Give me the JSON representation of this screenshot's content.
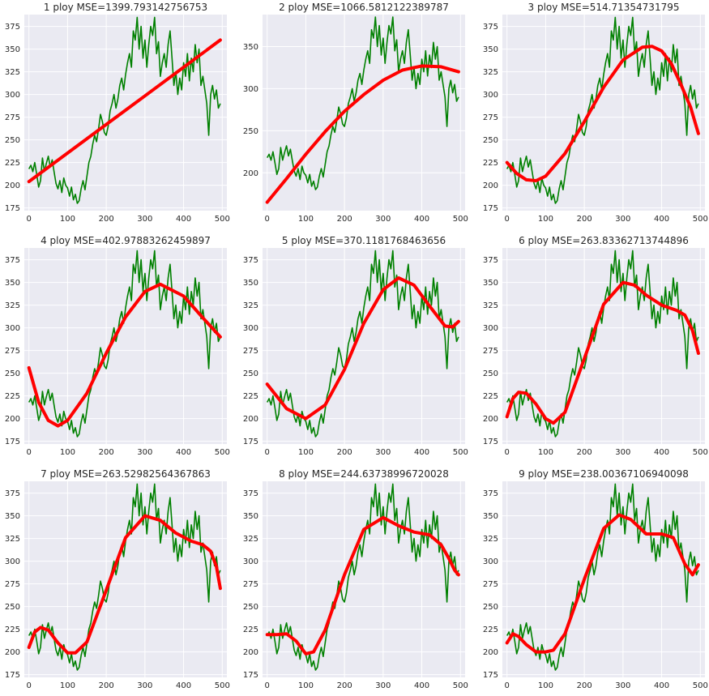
{
  "colors": {
    "background": "#eaeaf2",
    "grid": "#ffffff",
    "data_line": "#008000",
    "fit_line": "#ff0000"
  },
  "chart_data": [
    {
      "type": "line",
      "title": "1 ploy MSE=1399.793142756753",
      "xlim": [
        -12,
        512
      ],
      "ylim": [
        172,
        388
      ],
      "xticks": [
        0,
        100,
        200,
        300,
        400,
        500
      ],
      "xtick_labels": [
        "0",
        "100",
        "200",
        "300",
        "400",
        "500"
      ],
      "yticks": [
        175,
        200,
        225,
        250,
        275,
        300,
        325,
        350,
        375
      ],
      "ytick_labels": [
        "175",
        "200",
        "225",
        "250",
        "275",
        "300",
        "325",
        "350",
        "375"
      ],
      "grid": true,
      "fit": {
        "x": [
          0,
          100,
          200,
          300,
          400,
          495
        ],
        "y": [
          204,
          235.5,
          267,
          298.5,
          330,
          360
        ]
      }
    },
    {
      "type": "line",
      "title": "2 ploy MSE=1066.5812122389787",
      "xlim": [
        -12,
        512
      ],
      "ylim": [
        155,
        388
      ],
      "xticks": [
        0,
        100,
        200,
        300,
        400,
        500
      ],
      "xtick_labels": [
        "0",
        "100",
        "200",
        "300",
        "400",
        "500"
      ],
      "yticks": [
        200,
        250,
        300,
        350
      ],
      "ytick_labels": [
        "200",
        "250",
        "300",
        "350"
      ],
      "grid": true,
      "fit": {
        "x": [
          0,
          50,
          100,
          150,
          200,
          250,
          300,
          350,
          400,
          450,
          495
        ],
        "y": [
          165,
          193,
          222,
          249,
          273,
          293,
          310,
          322,
          327,
          326,
          320
        ]
      }
    },
    {
      "type": "line",
      "title": "3 ploy MSE=514.71354731795",
      "xlim": [
        -12,
        512
      ],
      "ylim": [
        172,
        388
      ],
      "xticks": [
        0,
        100,
        200,
        300,
        400,
        500
      ],
      "xtick_labels": [
        "0",
        "100",
        "200",
        "300",
        "400",
        "500"
      ],
      "yticks": [
        175,
        200,
        225,
        250,
        275,
        300,
        325,
        350,
        375
      ],
      "ytick_labels": [
        "175",
        "200",
        "225",
        "250",
        "275",
        "300",
        "325",
        "350",
        "375"
      ],
      "grid": true,
      "fit": {
        "x": [
          0,
          25,
          50,
          75,
          100,
          150,
          200,
          250,
          300,
          350,
          375,
          400,
          425,
          450,
          475,
          495
        ],
        "y": [
          225,
          213,
          206,
          205,
          210,
          235,
          270,
          308,
          338,
          352,
          353,
          348,
          334,
          311,
          286,
          257
        ]
      }
    },
    {
      "type": "line",
      "title": "4 ploy MSE=402.97883262459897",
      "xlim": [
        -12,
        512
      ],
      "ylim": [
        172,
        388
      ],
      "xticks": [
        0,
        100,
        200,
        300,
        400,
        500
      ],
      "xtick_labels": [
        "0",
        "100",
        "200",
        "300",
        "400",
        "500"
      ],
      "yticks": [
        175,
        200,
        225,
        250,
        275,
        300,
        325,
        350,
        375
      ],
      "ytick_labels": [
        "175",
        "200",
        "225",
        "250",
        "275",
        "300",
        "325",
        "350",
        "375"
      ],
      "grid": true,
      "fit": {
        "x": [
          0,
          25,
          50,
          75,
          100,
          150,
          200,
          250,
          300,
          340,
          400,
          450,
          495
        ],
        "y": [
          256,
          218,
          198,
          192,
          198,
          228,
          272,
          312,
          340,
          348,
          335,
          311,
          290
        ]
      }
    },
    {
      "type": "line",
      "title": "5 ploy MSE=370.1181768463656",
      "xlim": [
        -12,
        512
      ],
      "ylim": [
        172,
        388
      ],
      "xticks": [
        0,
        100,
        200,
        300,
        400,
        500
      ],
      "xtick_labels": [
        "0",
        "100",
        "200",
        "300",
        "400",
        "500"
      ],
      "yticks": [
        175,
        200,
        225,
        250,
        275,
        300,
        325,
        350,
        375
      ],
      "ytick_labels": [
        "175",
        "200",
        "225",
        "250",
        "275",
        "300",
        "325",
        "350",
        "375"
      ],
      "grid": true,
      "fit": {
        "x": [
          0,
          50,
          100,
          150,
          200,
          250,
          300,
          340,
          380,
          420,
          460,
          480,
          495
        ],
        "y": [
          238,
          211,
          200,
          215,
          254,
          305,
          342,
          355,
          347,
          324,
          302,
          301,
          307
        ]
      }
    },
    {
      "type": "line",
      "title": "6 ploy MSE=263.83362713744896",
      "xlim": [
        -12,
        512
      ],
      "ylim": [
        172,
        388
      ],
      "xticks": [
        0,
        100,
        200,
        300,
        400,
        500
      ],
      "xtick_labels": [
        "0",
        "100",
        "200",
        "300",
        "400",
        "500"
      ],
      "yticks": [
        175,
        200,
        225,
        250,
        275,
        300,
        325,
        350,
        375
      ],
      "ytick_labels": [
        "175",
        "200",
        "225",
        "250",
        "275",
        "300",
        "325",
        "350",
        "375"
      ],
      "grid": true,
      "fit": {
        "x": [
          0,
          15,
          30,
          50,
          75,
          100,
          120,
          150,
          200,
          250,
          300,
          330,
          360,
          400,
          440,
          460,
          480,
          495
        ],
        "y": [
          202,
          222,
          229,
          228,
          216,
          200,
          195,
          207,
          266,
          326,
          350,
          347,
          336,
          325,
          319,
          314,
          297,
          272
        ]
      }
    },
    {
      "type": "line",
      "title": "7 ploy MSE=263.52982564367863",
      "xlim": [
        -12,
        512
      ],
      "ylim": [
        172,
        388
      ],
      "xticks": [
        0,
        100,
        200,
        300,
        400,
        500
      ],
      "xtick_labels": [
        "0",
        "100",
        "200",
        "300",
        "400",
        "500"
      ],
      "yticks": [
        175,
        200,
        225,
        250,
        275,
        300,
        325,
        350,
        375
      ],
      "ytick_labels": [
        "175",
        "200",
        "225",
        "250",
        "275",
        "300",
        "325",
        "350",
        "375"
      ],
      "grid": true,
      "fit": {
        "x": [
          0,
          15,
          30,
          50,
          75,
          100,
          120,
          150,
          200,
          250,
          300,
          340,
          380,
          420,
          450,
          470,
          485,
          495
        ],
        "y": [
          205,
          222,
          227,
          224,
          210,
          199,
          199,
          211,
          268,
          326,
          350,
          345,
          331,
          322,
          318,
          311,
          294,
          270
        ]
      }
    },
    {
      "type": "line",
      "title": "8 ploy MSE=244.63738996720028",
      "xlim": [
        -12,
        512
      ],
      "ylim": [
        172,
        388
      ],
      "xticks": [
        0,
        100,
        200,
        300,
        400,
        500
      ],
      "xtick_labels": [
        "0",
        "100",
        "200",
        "300",
        "400",
        "500"
      ],
      "yticks": [
        175,
        200,
        225,
        250,
        275,
        300,
        325,
        350,
        375
      ],
      "ytick_labels": [
        "175",
        "200",
        "225",
        "250",
        "275",
        "300",
        "325",
        "350",
        "375"
      ],
      "grid": true,
      "fit": {
        "x": [
          0,
          25,
          50,
          75,
          100,
          120,
          150,
          200,
          250,
          300,
          340,
          380,
          420,
          450,
          470,
          485,
          495
        ],
        "y": [
          219,
          219,
          220,
          212,
          198,
          200,
          224,
          285,
          335,
          348,
          339,
          332,
          329,
          318,
          303,
          290,
          285
        ]
      }
    },
    {
      "type": "line",
      "title": "9 ploy MSE=238.00367106940098",
      "xlim": [
        -12,
        512
      ],
      "ylim": [
        172,
        388
      ],
      "xticks": [
        0,
        100,
        200,
        300,
        400,
        500
      ],
      "xtick_labels": [
        "0",
        "100",
        "200",
        "300",
        "400",
        "500"
      ],
      "yticks": [
        175,
        200,
        225,
        250,
        275,
        300,
        325,
        350,
        375
      ],
      "ytick_labels": [
        "175",
        "200",
        "225",
        "250",
        "275",
        "300",
        "325",
        "350",
        "375"
      ],
      "grid": true,
      "fit": {
        "x": [
          0,
          15,
          30,
          50,
          75,
          100,
          120,
          150,
          200,
          250,
          290,
          320,
          360,
          400,
          430,
          460,
          480,
          495
        ],
        "y": [
          210,
          220,
          217,
          208,
          200,
          200,
          202,
          220,
          280,
          336,
          351,
          346,
          330,
          330,
          326,
          297,
          285,
          296
        ]
      }
    }
  ],
  "raw_series": {
    "x": [
      0,
      5,
      10,
      15,
      20,
      25,
      30,
      35,
      40,
      45,
      50,
      55,
      60,
      65,
      70,
      75,
      80,
      85,
      90,
      95,
      100,
      105,
      110,
      115,
      120,
      125,
      130,
      135,
      140,
      145,
      150,
      155,
      160,
      165,
      170,
      175,
      180,
      185,
      190,
      195,
      200,
      205,
      210,
      215,
      220,
      225,
      230,
      235,
      240,
      245,
      250,
      255,
      260,
      265,
      270,
      275,
      280,
      285,
      290,
      295,
      300,
      305,
      310,
      315,
      320,
      325,
      330,
      335,
      340,
      345,
      350,
      355,
      360,
      365,
      370,
      375,
      380,
      385,
      390,
      395,
      400,
      405,
      410,
      415,
      420,
      425,
      430,
      435,
      440,
      445,
      450,
      455,
      460,
      465,
      470,
      475,
      480,
      485,
      490,
      495
    ],
    "y": [
      218,
      222,
      215,
      225,
      212,
      198,
      205,
      230,
      215,
      224,
      232,
      220,
      228,
      215,
      202,
      196,
      205,
      192,
      208,
      200,
      197,
      188,
      198,
      184,
      190,
      180,
      183,
      196,
      205,
      195,
      210,
      225,
      232,
      245,
      255,
      248,
      262,
      278,
      270,
      258,
      255,
      265,
      282,
      290,
      300,
      285,
      295,
      310,
      318,
      305,
      322,
      335,
      345,
      330,
      370,
      360,
      385,
      350,
      375,
      340,
      360,
      330,
      355,
      375,
      365,
      385,
      345,
      358,
      320,
      335,
      345,
      330,
      355,
      370,
      340,
      310,
      325,
      300,
      318,
      305,
      335,
      320,
      345,
      315,
      340,
      325,
      355,
      335,
      350,
      310,
      320,
      305,
      290,
      255,
      300,
      310,
      295,
      305,
      285,
      290
    ]
  }
}
